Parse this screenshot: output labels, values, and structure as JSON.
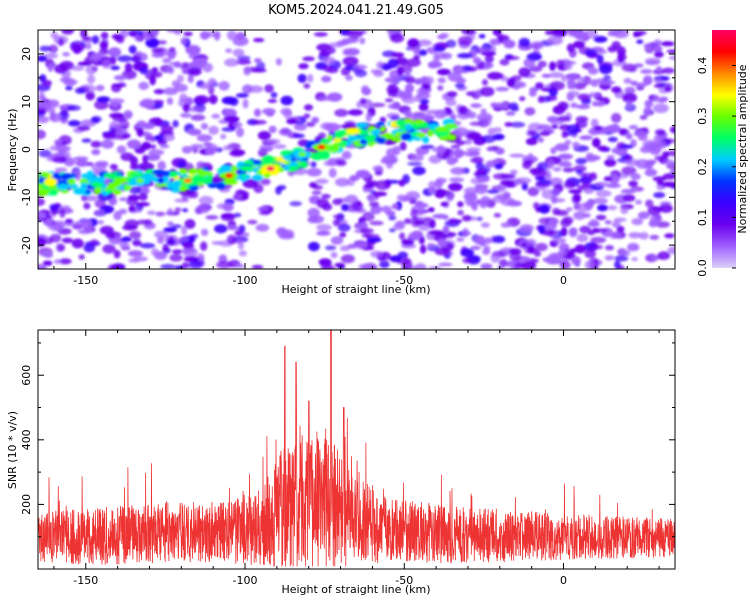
{
  "title": "KOM5.2024.041.21.49.G05",
  "colors": {
    "snr_line": "#ee3333",
    "axis": "#000000",
    "background": "#ffffff",
    "heatmap_low": "#c9b4f2",
    "heatmap_mid": "#7a10ee",
    "colormap": [
      "#dcd0f7",
      "#a060ff",
      "#6b00ee",
      "#3b00ff",
      "#0033ff",
      "#00ccff",
      "#00ff66",
      "#66ff00",
      "#ffff00",
      "#ff8800",
      "#ff0000",
      "#ff0066"
    ]
  },
  "chart_data": [
    {
      "type": "heatmap",
      "xlabel": "Height of straight line (km)",
      "ylabel": "Frequency (Hz)",
      "xlim": [
        -165,
        35
      ],
      "ylim": [
        -25,
        25
      ],
      "xticks": [
        -150,
        -100,
        -50,
        0
      ],
      "yticks": [
        -20,
        -10,
        0,
        10,
        20
      ],
      "colorbar": {
        "label": "Normalized spectral amplitude",
        "range": [
          0,
          0.47
        ],
        "ticks": [
          0.0,
          0.1,
          0.2,
          0.3,
          0.4
        ]
      },
      "ridge": {
        "description_points": [
          {
            "x": -165,
            "y": -7
          },
          {
            "x": -140,
            "y": -7
          },
          {
            "x": -120,
            "y": -6.5
          },
          {
            "x": -105,
            "y": -5.5
          },
          {
            "x": -95,
            "y": -4
          },
          {
            "x": -85,
            "y": -2
          },
          {
            "x": -77,
            "y": 0
          },
          {
            "x": -65,
            "y": 3
          },
          {
            "x": -50,
            "y": 4
          },
          {
            "x": -35,
            "y": 4
          }
        ],
        "peaks": [
          {
            "x": -133,
            "y": -6.5,
            "amp": 0.32
          },
          {
            "x": -118,
            "y": -6.5,
            "amp": 0.38
          },
          {
            "x": -105,
            "y": -5.5,
            "amp": 0.42
          },
          {
            "x": -92,
            "y": -4,
            "amp": 0.46
          },
          {
            "x": -82,
            "y": -1,
            "amp": 0.3
          },
          {
            "x": -76,
            "y": 0.5,
            "amp": 0.44
          }
        ]
      }
    },
    {
      "type": "line",
      "xlabel": "Height of straight line (km)",
      "ylabel": "SNR (10 * v/v)",
      "xlim": [
        -165,
        35
      ],
      "ylim": [
        0,
        740
      ],
      "xticks": [
        -150,
        -100,
        -50,
        0
      ],
      "yticks": [
        200,
        400,
        600
      ],
      "series": [
        {
          "noise_envelope": [
            {
              "x": -165,
              "base": 100,
              "spread": 140
            },
            {
              "x": -150,
              "base": 100,
              "spread": 160
            },
            {
              "x": -130,
              "base": 110,
              "spread": 170
            },
            {
              "x": -110,
              "base": 115,
              "spread": 170
            },
            {
              "x": -95,
              "base": 120,
              "spread": 200
            },
            {
              "x": -88,
              "base": 200,
              "spread": 380
            },
            {
              "x": -80,
              "base": 210,
              "spread": 380
            },
            {
              "x": -74,
              "base": 220,
              "spread": 400
            },
            {
              "x": -66,
              "base": 150,
              "spread": 260
            },
            {
              "x": -55,
              "base": 120,
              "spread": 180
            },
            {
              "x": -30,
              "base": 105,
              "spread": 160
            },
            {
              "x": 0,
              "base": 100,
              "spread": 130
            },
            {
              "x": 35,
              "base": 95,
              "spread": 110
            }
          ],
          "peaks": [
            {
              "x": -87.5,
              "y": 690
            },
            {
              "x": -84,
              "y": 640
            },
            {
              "x": -80,
              "y": 520
            },
            {
              "x": -73,
              "y": 740
            },
            {
              "x": -69,
              "y": 500
            }
          ]
        }
      ]
    }
  ]
}
